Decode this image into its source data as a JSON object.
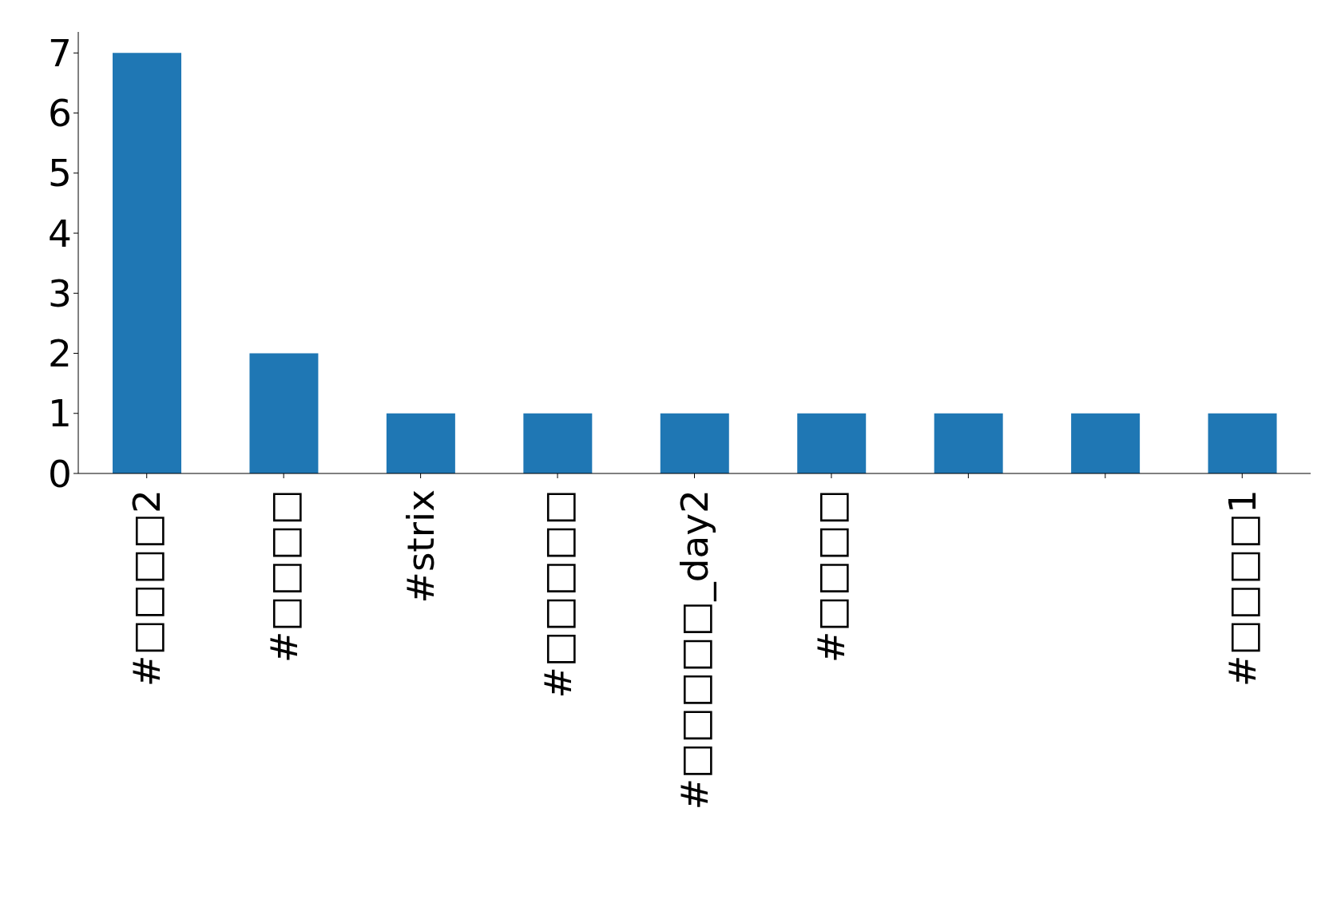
{
  "chart_data": {
    "type": "bar",
    "categories": [
      "#□□□□2",
      "#□□□□",
      "#strix",
      "#□□□□□",
      "#□□□□□_day2",
      "#□□□□",
      null,
      null,
      "#□□□□1"
    ],
    "values": [
      7,
      2,
      1,
      1,
      1,
      1,
      1,
      1,
      1
    ],
    "color": "#1f77b4",
    "ylim": [
      0,
      7.35
    ],
    "yticks": [
      0,
      1,
      2,
      3,
      4,
      5,
      6,
      7
    ],
    "grid": false
  }
}
